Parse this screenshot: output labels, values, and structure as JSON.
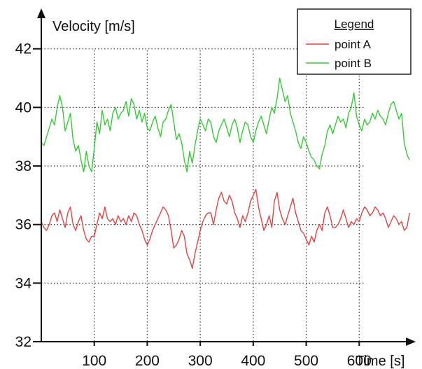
{
  "chart_data": {
    "type": "line",
    "ylabel": "Velocity [m/s]",
    "xlabel": "Time [s]",
    "xlim": [
      0,
      700
    ],
    "ylim": [
      32,
      43.5
    ],
    "x_ticks": [
      100,
      200,
      300,
      400,
      500,
      600
    ],
    "y_ticks": [
      32,
      34,
      36,
      38,
      40,
      42
    ],
    "x_grid": [
      100,
      200,
      300,
      400,
      500,
      600
    ],
    "y_grid": [
      34,
      36,
      38,
      40,
      42
    ],
    "grid": "dotted",
    "legend": {
      "title": "Legend",
      "position": "top-right"
    },
    "series": [
      {
        "name": "point A",
        "color": "#e84040",
        "x": [
          0,
          5,
          10,
          15,
          20,
          25,
          30,
          35,
          40,
          45,
          50,
          55,
          60,
          65,
          70,
          75,
          80,
          85,
          90,
          95,
          100,
          105,
          110,
          115,
          120,
          125,
          130,
          135,
          140,
          145,
          150,
          155,
          160,
          165,
          170,
          175,
          180,
          185,
          190,
          195,
          200,
          205,
          210,
          215,
          220,
          225,
          230,
          235,
          240,
          245,
          250,
          255,
          260,
          265,
          270,
          275,
          280,
          285,
          290,
          295,
          300,
          305,
          310,
          315,
          320,
          325,
          330,
          335,
          340,
          345,
          350,
          355,
          360,
          365,
          370,
          375,
          380,
          385,
          390,
          395,
          400,
          405,
          410,
          415,
          420,
          425,
          430,
          435,
          440,
          445,
          450,
          455,
          460,
          465,
          470,
          475,
          480,
          485,
          490,
          495,
          500,
          505,
          510,
          515,
          520,
          525,
          530,
          535,
          540,
          545,
          550,
          555,
          560,
          565,
          570,
          575,
          580,
          585,
          590,
          595,
          600,
          605,
          610,
          615,
          620,
          625,
          630,
          635,
          640,
          645,
          650,
          655,
          660,
          665,
          670,
          675,
          680,
          685,
          690,
          695
        ],
        "values": [
          36.1,
          35.9,
          35.8,
          36.0,
          36.3,
          36.4,
          36.1,
          36.5,
          36.2,
          35.9,
          36.4,
          36.6,
          36.0,
          35.8,
          36.1,
          36.3,
          35.8,
          35.5,
          35.4,
          35.6,
          35.6,
          36.0,
          36.4,
          36.2,
          36.6,
          36.2,
          36.1,
          36.2,
          36.0,
          36.3,
          36.1,
          36.2,
          36.0,
          36.3,
          36.1,
          36.4,
          36.3,
          36.0,
          35.8,
          35.5,
          35.3,
          35.5,
          35.8,
          36.0,
          36.2,
          36.4,
          36.6,
          36.5,
          36.3,
          35.8,
          35.2,
          35.3,
          35.5,
          35.8,
          35.6,
          35.0,
          34.8,
          34.5,
          35.0,
          35.4,
          35.8,
          36.1,
          36.3,
          36.4,
          36.4,
          36.0,
          36.5,
          36.9,
          37.1,
          36.8,
          36.7,
          37.0,
          36.8,
          36.4,
          36.2,
          35.9,
          36.3,
          36.1,
          36.4,
          36.8,
          37.0,
          37.2,
          36.6,
          36.2,
          35.8,
          36.0,
          36.3,
          35.9,
          36.8,
          37.1,
          36.5,
          36.2,
          36.0,
          36.3,
          36.6,
          36.9,
          36.4,
          36.1,
          35.8,
          35.7,
          35.5,
          35.3,
          35.6,
          35.4,
          35.8,
          36.0,
          35.8,
          36.4,
          36.6,
          36.3,
          35.9,
          35.9,
          36.0,
          36.2,
          36.5,
          36.2,
          35.9,
          36.1,
          36.0,
          36.2,
          36.1,
          36.4,
          36.6,
          36.5,
          36.3,
          36.4,
          36.6,
          36.5,
          36.3,
          36.4,
          36.2,
          35.9,
          36.1,
          36.3,
          36.2,
          36.0,
          36.1,
          35.8,
          35.9,
          36.4
        ]
      },
      {
        "name": "point B",
        "color": "#33cc33",
        "x": [
          0,
          5,
          10,
          15,
          20,
          25,
          30,
          35,
          40,
          45,
          50,
          55,
          60,
          65,
          70,
          75,
          80,
          85,
          90,
          95,
          100,
          105,
          110,
          115,
          120,
          125,
          130,
          135,
          140,
          145,
          150,
          155,
          160,
          165,
          170,
          175,
          180,
          185,
          190,
          195,
          200,
          205,
          210,
          215,
          220,
          225,
          230,
          235,
          240,
          245,
          250,
          255,
          260,
          265,
          270,
          275,
          280,
          285,
          290,
          295,
          300,
          305,
          310,
          315,
          320,
          325,
          330,
          335,
          340,
          345,
          350,
          355,
          360,
          365,
          370,
          375,
          380,
          385,
          390,
          395,
          400,
          405,
          410,
          415,
          420,
          425,
          430,
          435,
          440,
          445,
          450,
          455,
          460,
          465,
          470,
          475,
          480,
          485,
          490,
          495,
          500,
          505,
          510,
          515,
          520,
          525,
          530,
          535,
          540,
          545,
          550,
          555,
          560,
          565,
          570,
          575,
          580,
          585,
          590,
          595,
          600,
          605,
          610,
          615,
          620,
          625,
          630,
          635,
          640,
          645,
          650,
          655,
          660,
          665,
          670,
          675,
          680,
          685,
          690,
          695
        ],
        "values": [
          38.8,
          38.7,
          39.0,
          39.3,
          39.6,
          39.4,
          40.0,
          40.4,
          40.0,
          39.2,
          39.5,
          39.8,
          38.9,
          38.5,
          38.7,
          38.2,
          37.8,
          38.5,
          38.0,
          37.8,
          38.6,
          39.5,
          39.1,
          39.9,
          39.4,
          39.6,
          39.2,
          39.8,
          40.0,
          39.6,
          39.8,
          39.9,
          40.2,
          39.7,
          40.3,
          40.1,
          39.6,
          39.9,
          39.5,
          39.8,
          39.3,
          39.2,
          39.5,
          39.7,
          39.3,
          39.0,
          39.5,
          39.6,
          39.9,
          40.1,
          39.5,
          38.9,
          39.1,
          38.8,
          38.2,
          37.8,
          38.5,
          38.1,
          38.7,
          39.2,
          39.6,
          39.4,
          39.2,
          39.6,
          39.5,
          39.0,
          38.8,
          39.2,
          39.4,
          39.6,
          39.3,
          39.0,
          39.4,
          39.6,
          39.3,
          38.8,
          39.2,
          39.5,
          39.4,
          39.0,
          38.8,
          39.2,
          39.5,
          39.7,
          39.4,
          39.1,
          39.6,
          40.0,
          39.8,
          40.3,
          41.0,
          40.6,
          40.2,
          40.4,
          39.8,
          39.5,
          39.2,
          38.8,
          38.6,
          39.0,
          38.8,
          38.5,
          38.3,
          38.2,
          38.0,
          37.9,
          38.4,
          38.7,
          39.2,
          39.4,
          39.1,
          39.4,
          39.7,
          39.5,
          39.6,
          39.3,
          39.8,
          40.0,
          40.5,
          39.7,
          39.4,
          39.2,
          39.6,
          39.4,
          39.5,
          39.8,
          39.6,
          39.9,
          39.7,
          39.6,
          39.4,
          39.8,
          40.1,
          40.2,
          39.9,
          39.6,
          39.8,
          38.8,
          38.4,
          38.2
        ]
      }
    ]
  }
}
